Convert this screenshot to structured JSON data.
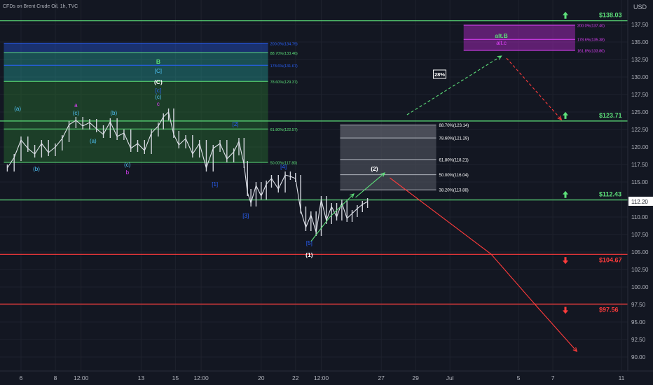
{
  "header": {
    "symbol": "CFDs on Brent Crude Oil, 1h, TVC",
    "currency": "USD"
  },
  "chart_data": {
    "type": "candlestick",
    "title": "CFDs on Brent Crude Oil, 1h, TVC",
    "y_unit": "USD",
    "ylim": [
      88.5,
      141.3
    ],
    "y_ticks": [
      90.0,
      92.5,
      95.0,
      97.5,
      100.0,
      102.5,
      105.0,
      107.5,
      110.0,
      112.5,
      115.0,
      117.5,
      120.0,
      122.5,
      125.0,
      127.5,
      130.0,
      132.5,
      135.0,
      137.5
    ],
    "x_ticks": [
      {
        "label": "6",
        "day": 6
      },
      {
        "label": "8",
        "day": 8
      },
      {
        "label": "12:00",
        "day": 9.5
      },
      {
        "label": "13",
        "day": 13
      },
      {
        "label": "15",
        "day": 15
      },
      {
        "label": "12:00",
        "day": 16.5
      },
      {
        "label": "20",
        "day": 20
      },
      {
        "label": "22",
        "day": 22
      },
      {
        "label": "12:00",
        "day": 23.5
      },
      {
        "label": "27",
        "day": 27
      },
      {
        "label": "29",
        "day": 29
      },
      {
        "label": "Jul",
        "day": 31
      },
      {
        "label": "5",
        "day": 35
      },
      {
        "label": "7",
        "day": 37
      },
      {
        "label": "11",
        "day": 41
      }
    ],
    "last_price": 112.2,
    "last_price_label": "112.20",
    "price_series": {
      "day": [
        5.2,
        5.6,
        6.0,
        6.4,
        6.8,
        7.2,
        7.6,
        8.0,
        8.4,
        8.8,
        9.2,
        9.6,
        10.0,
        10.4,
        10.8,
        11.2,
        11.6,
        12.0,
        12.4,
        12.8,
        13.2,
        13.6,
        14.0,
        14.3,
        14.6,
        14.9,
        15.2,
        15.6,
        16.0,
        16.4,
        16.8,
        17.2,
        17.6,
        18.0,
        18.4,
        18.7,
        19.0,
        19.2,
        19.4,
        19.7,
        20.0,
        20.3,
        20.6,
        21.0,
        21.4,
        21.7,
        22.0,
        22.3,
        22.6,
        22.9,
        23.2,
        23.5,
        23.8,
        24.1,
        24.4,
        24.7,
        25.0,
        25.3,
        25.6,
        25.9,
        26.2
      ],
      "close": [
        117.0,
        118.5,
        121.0,
        119.8,
        119.0,
        120.5,
        119.2,
        120.0,
        121.2,
        123.2,
        123.8,
        123.0,
        123.5,
        122.6,
        121.8,
        123.6,
        121.5,
        122.0,
        119.8,
        120.5,
        119.5,
        122.0,
        123.0,
        124.3,
        125.0,
        121.8,
        120.3,
        121.2,
        119.0,
        120.5,
        117.0,
        119.8,
        120.5,
        118.3,
        119.3,
        120.8,
        117.5,
        113.5,
        112.0,
        114.5,
        113.0,
        114.7,
        115.5,
        114.0,
        116.0,
        115.8,
        115.5,
        111.0,
        108.5,
        110.3,
        107.8,
        112.5,
        109.5,
        111.5,
        110.0,
        112.0,
        109.8,
        110.5,
        111.2,
        111.8,
        112.2
      ]
    },
    "horizontal_levels": [
      {
        "value": 138.03,
        "label": "$138.03",
        "color": "#5de07a",
        "arrow": "up"
      },
      {
        "value": 123.71,
        "label": "$123.71",
        "color": "#5de07a",
        "arrow": "up"
      },
      {
        "value": 112.43,
        "label": "$112.43",
        "color": "#5de07a",
        "arrow": "up"
      },
      {
        "value": 104.67,
        "label": "$104.67",
        "color": "#ff3b3b",
        "arrow": "down"
      },
      {
        "value": 97.56,
        "label": "$97.56",
        "color": "#ff3b3b",
        "arrow": "down"
      }
    ],
    "fib_zones": [
      {
        "name": "green",
        "day_start": 5.0,
        "day_end": 20.4,
        "levels": [
          {
            "value": 134.79,
            "label": "200.0%(134.79)",
            "color": "#2962ff"
          },
          {
            "value": 133.46,
            "label": "88.70%(133.46)",
            "color": "#5de07a"
          },
          {
            "value": 131.67,
            "label": "178.6%(131.67)",
            "color": "#2962ff"
          },
          {
            "value": 129.37,
            "label": "78.60%(129.37)",
            "color": "#5de07a"
          },
          {
            "value": 122.57,
            "label": "61.80%(122.57)",
            "color": "#5de07a"
          },
          {
            "value": 117.8,
            "label": "50.00%(117.80)",
            "color": "#5de07a"
          }
        ]
      },
      {
        "name": "grey",
        "day_start": 24.6,
        "day_end": 30.2,
        "levels": [
          {
            "value": 123.14,
            "label": "88.70%(123.14)"
          },
          {
            "value": 121.29,
            "label": "78.60%(121.29)"
          },
          {
            "value": 118.21,
            "label": "61.80%(118.21)"
          },
          {
            "value": 116.04,
            "label": "50.00%(116.04)"
          },
          {
            "value": 113.88,
            "label": "38.20%(113.88)"
          }
        ]
      },
      {
        "name": "purple",
        "day_start": 31.8,
        "day_end": 38.3,
        "levels": [
          {
            "value": 137.4,
            "label": "200.0%(137.40)"
          },
          {
            "value": 135.38,
            "label": "178.6%(135.38)"
          },
          {
            "value": 133.8,
            "label": "161.8%(133.80)"
          }
        ]
      }
    ],
    "wave_labels": [
      {
        "text": "(a)",
        "day": 5.8,
        "price": 125.2,
        "color": "#4fc3f7"
      },
      {
        "text": "(b)",
        "day": 6.9,
        "price": 116.6,
        "color": "#4fc3f7"
      },
      {
        "text": "(c)",
        "day": 9.2,
        "price": 124.6,
        "color": "#4fc3f7"
      },
      {
        "text": "a",
        "day": 9.2,
        "price": 125.7,
        "color": "#e040fb"
      },
      {
        "text": "(a)",
        "day": 10.2,
        "price": 120.6,
        "color": "#4fc3f7"
      },
      {
        "text": "(b)",
        "day": 11.4,
        "price": 124.6,
        "color": "#4fc3f7"
      },
      {
        "text": "(c)",
        "day": 12.2,
        "price": 117.2,
        "color": "#4fc3f7"
      },
      {
        "text": "b",
        "day": 12.2,
        "price": 116.1,
        "color": "#e040fb"
      },
      {
        "text": "B",
        "day": 14.0,
        "price": 131.9,
        "color": "#5de07a"
      },
      {
        "text": "[C]",
        "day": 14.0,
        "price": 130.6,
        "color": "#4fc3f7"
      },
      {
        "text": "(C)",
        "day": 14.0,
        "price": 129.0,
        "color": "#ffffff"
      },
      {
        "text": "[c]",
        "day": 14.0,
        "price": 127.8,
        "color": "#2962ff"
      },
      {
        "text": "(c)",
        "day": 14.0,
        "price": 126.9,
        "color": "#4fc3f7"
      },
      {
        "text": "c",
        "day": 14.0,
        "price": 125.9,
        "color": "#e040fb"
      },
      {
        "text": "[1]",
        "day": 17.3,
        "price": 114.4,
        "color": "#2962ff"
      },
      {
        "text": "[2]",
        "day": 18.5,
        "price": 123.0,
        "color": "#2962ff"
      },
      {
        "text": "[3]",
        "day": 19.1,
        "price": 109.9,
        "color": "#2962ff"
      },
      {
        "text": "[4]",
        "day": 21.3,
        "price": 116.9,
        "color": "#2962ff"
      },
      {
        "text": "[5]",
        "day": 22.8,
        "price": 106.0,
        "color": "#2962ff"
      },
      {
        "text": "(1)",
        "day": 22.8,
        "price": 104.3,
        "color": "#ffffff"
      },
      {
        "text": "(2)",
        "day": 26.6,
        "price": 116.6,
        "color": "#ffffff"
      },
      {
        "text": "alt.B",
        "day": 34.0,
        "price": 135.6,
        "color": "#5de07a"
      },
      {
        "text": "alt.c",
        "day": 34.0,
        "price": 134.6,
        "color": "#e040fb"
      }
    ],
    "probability_badge": {
      "text": "28%",
      "day": 30.4,
      "price": 130.4
    },
    "projections": [
      {
        "color": "#5de07a",
        "dash": false,
        "points": [
          [
            22.9,
            106.5
          ],
          [
            24.0,
            110.0
          ],
          [
            25.4,
            113.3
          ]
        ]
      },
      {
        "color": "#5de07a",
        "dash": false,
        "points": [
          [
            25.5,
            112.8
          ],
          [
            27.2,
            116.3
          ]
        ]
      },
      {
        "color": "#5de07a",
        "dash": true,
        "points": [
          [
            28.5,
            124.6
          ],
          [
            34.0,
            133.0
          ]
        ]
      },
      {
        "color": "#ff3b3b",
        "dash": true,
        "points": [
          [
            34.3,
            132.7
          ],
          [
            37.5,
            123.9
          ]
        ]
      },
      {
        "color": "#ff3b3b",
        "dash": false,
        "points": [
          [
            27.5,
            115.6
          ],
          [
            33.4,
            104.7
          ],
          [
            36.0,
            97.4
          ],
          [
            38.4,
            90.8
          ]
        ]
      }
    ]
  }
}
